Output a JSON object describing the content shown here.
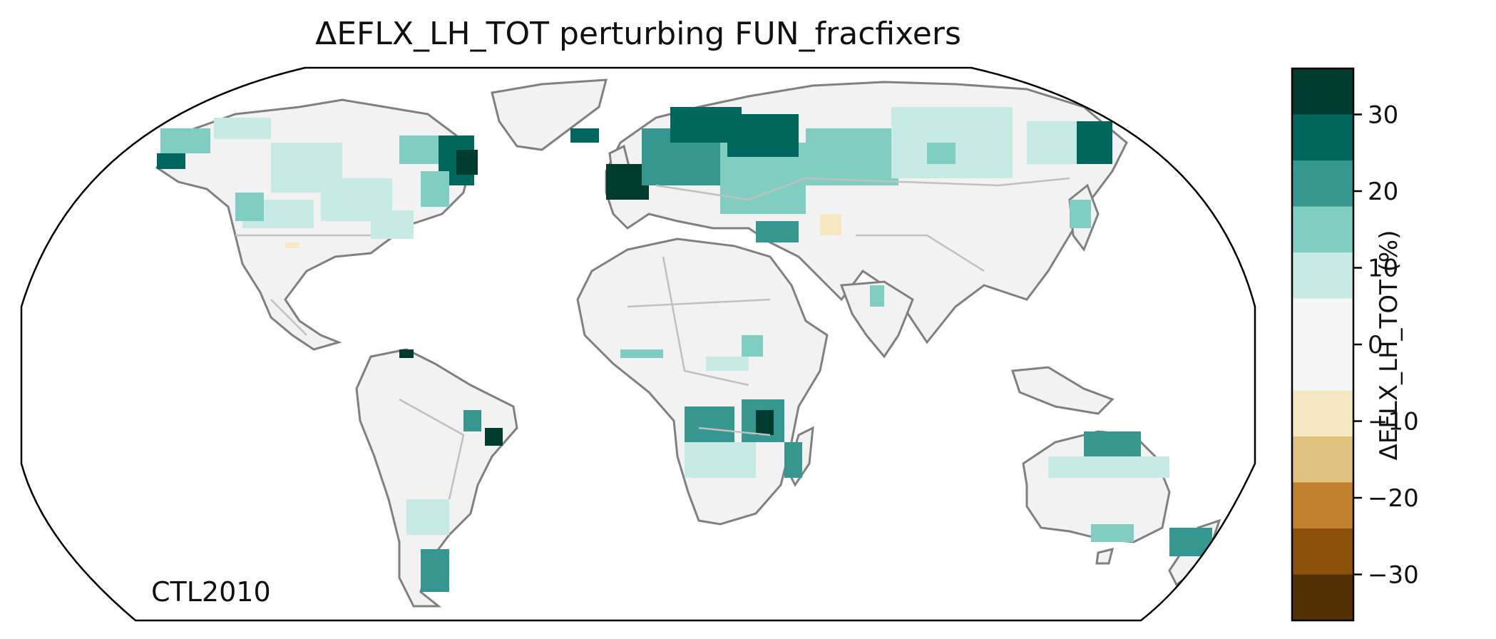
{
  "map": {
    "title": "ΔEFLX_LH_TOT perturbing FUN_fracfixers",
    "case_label": "CTL2010",
    "projection": "Robinson",
    "land_color": "#f2f2f2",
    "coastline_color": "#808080",
    "border_color": "#c0c0c0"
  },
  "colorbar": {
    "label": "ΔEFLX_LH_TOT (%)",
    "ticks": [
      "30",
      "20",
      "10",
      "0",
      "−10",
      "−20",
      "−30"
    ],
    "tick_values": [
      30,
      20,
      10,
      0,
      -10,
      -20,
      -30
    ],
    "range": [
      -36,
      36
    ],
    "bins": [
      {
        "from": 30,
        "to": 36,
        "color": "#003c30"
      },
      {
        "from": 24,
        "to": 30,
        "color": "#01665e"
      },
      {
        "from": 18,
        "to": 24,
        "color": "#35978f"
      },
      {
        "from": 12,
        "to": 18,
        "color": "#80cdc1"
      },
      {
        "from": 6,
        "to": 12,
        "color": "#c7eae5"
      },
      {
        "from": -6,
        "to": 6,
        "color": "#f5f5f5"
      },
      {
        "from": -12,
        "to": -6,
        "color": "#f6e8c3"
      },
      {
        "from": -18,
        "to": -12,
        "color": "#dfc27d"
      },
      {
        "from": -24,
        "to": -18,
        "color": "#bf812d"
      },
      {
        "from": -30,
        "to": -24,
        "color": "#8c510a"
      },
      {
        "from": -36,
        "to": -30,
        "color": "#543005"
      }
    ]
  }
}
